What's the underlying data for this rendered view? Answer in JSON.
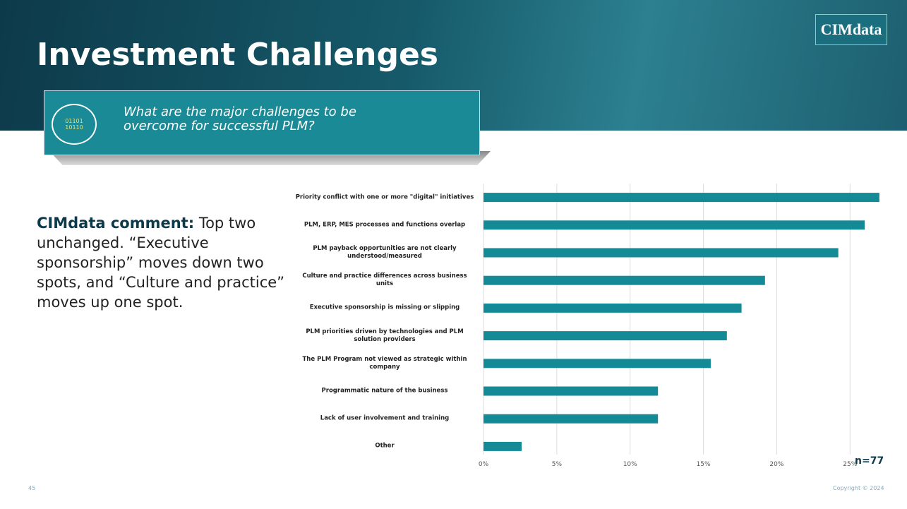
{
  "slide": {
    "title": "Investment Challenges",
    "logo": "CIMdata",
    "icon_text": [
      "01101",
      "10110"
    ],
    "question": "What are the major challenges to be overcome for successful PLM?",
    "comment_label": "CIMdata comment:",
    "comment_text": "Top two unchanged. “Executive sponsorship” moves down two spots, and “Culture and practice” moves up one spot.",
    "sample": "n=77",
    "page": "45",
    "copyright": "Copyright © 2024"
  },
  "chart_data": {
    "type": "hbar",
    "categories": [
      "Priority conflict with one or more \"digital\" initiatives",
      "PLM, ERP, MES processes and functions overlap",
      "PLM payback opportunities are not clearly understood/measured",
      "Culture and practice differences across business units",
      "Executive sponsorship is missing or slipping",
      "PLM priorities driven by technologies and PLM solution providers",
      "The PLM Program not viewed as strategic within company",
      "Programmatic nature of the business",
      "Lack of user involvement and training",
      "Other"
    ],
    "values": [
      27,
      26,
      24.2,
      19.2,
      17.6,
      16.6,
      15.5,
      11.9,
      11.9,
      2.6
    ],
    "color": "#138a96",
    "xlim": [
      0,
      27.2
    ],
    "xticks": [
      {
        "value": 0,
        "label": "0%"
      },
      {
        "value": 5,
        "label": "5%"
      },
      {
        "value": 10,
        "label": "10%"
      },
      {
        "value": 15,
        "label": "15%"
      },
      {
        "value": 20,
        "label": "20%"
      },
      {
        "value": 25,
        "label": "25%"
      }
    ],
    "grid": true
  }
}
